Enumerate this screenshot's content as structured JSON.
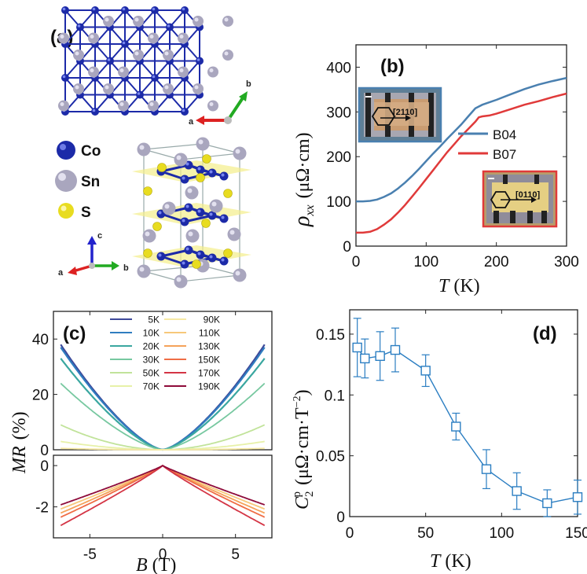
{
  "panels": {
    "a": {
      "label": "(a)",
      "elements": [
        "Co",
        "Sn",
        "S"
      ],
      "axis_top": {
        "a": "a",
        "b": "b"
      },
      "axis_bottom": {
        "a": "a",
        "b": "b",
        "c": "c"
      },
      "colors": {
        "Co": "#1c2aa8",
        "Sn": "#a9a6be",
        "S": "#e8dc20"
      }
    }
  },
  "chart_data": [
    {
      "id": "b",
      "type": "line",
      "panel_label": "(b)",
      "xlabel": "T",
      "xunit": "(K)",
      "ylabel": "ρ",
      "ysub": "xx",
      "yunit": "(μΩ·cm)",
      "xlim": [
        0,
        300
      ],
      "ylim": [
        0,
        450
      ],
      "xticks": [
        "0",
        "100",
        "200",
        "300"
      ],
      "yticks": [
        "0",
        "100",
        "200",
        "300",
        "400"
      ],
      "legend": [
        "B04",
        "B07"
      ],
      "inset1_label": "[2110]",
      "inset2_label": "[0110]",
      "series": [
        {
          "name": "B04",
          "color": "#4a80b0",
          "x": [
            0,
            10,
            20,
            30,
            40,
            50,
            60,
            70,
            80,
            90,
            100,
            110,
            120,
            130,
            140,
            150,
            160,
            170,
            175,
            180,
            200,
            220,
            240,
            260,
            280,
            300
          ],
          "y": [
            100,
            100,
            101,
            104,
            110,
            118,
            129,
            142,
            157,
            173,
            190,
            207,
            223,
            240,
            256,
            272,
            290,
            308,
            312,
            316,
            327,
            339,
            351,
            361,
            369,
            376
          ]
        },
        {
          "name": "B07",
          "color": "#e03a3a",
          "x": [
            0,
            10,
            20,
            30,
            40,
            50,
            60,
            70,
            80,
            90,
            100,
            110,
            120,
            130,
            140,
            150,
            160,
            170,
            175,
            180,
            190,
            200,
            220,
            240,
            260,
            280,
            300
          ],
          "y": [
            30,
            30,
            32,
            38,
            48,
            60,
            75,
            92,
            111,
            130,
            150,
            170,
            190,
            210,
            228,
            246,
            262,
            278,
            288,
            290,
            292,
            296,
            306,
            316,
            324,
            333,
            341
          ]
        }
      ]
    },
    {
      "id": "c",
      "type": "line",
      "panel_label": "(c)",
      "xlabel": "B",
      "xunit": "(T)",
      "ylabel": "MR",
      "yunit": "(%)",
      "xlim": [
        -7.5,
        7.5
      ],
      "ylim_top": [
        0,
        50
      ],
      "ylim_bottom": [
        -3.5,
        0.5
      ],
      "xticks": [
        "-5",
        "0",
        "5"
      ],
      "yticks_top": [
        "0",
        "20",
        "40"
      ],
      "yticks_bottom": [
        "0",
        "-2"
      ],
      "legend_col1": [
        "5K",
        "10K",
        "20K",
        "30K",
        "50K",
        "70K"
      ],
      "legend_col2": [
        "90K",
        "110K",
        "130K",
        "150K",
        "170K",
        "190K"
      ],
      "series": [
        {
          "name": "5K",
          "color": "#3e4a9a",
          "mr_at_7T": 38
        },
        {
          "name": "10K",
          "color": "#2f7dc0",
          "mr_at_7T": 37
        },
        {
          "name": "20K",
          "color": "#3aa7a0",
          "mr_at_7T": 33
        },
        {
          "name": "30K",
          "color": "#77c8a0",
          "mr_at_7T": 24
        },
        {
          "name": "50K",
          "color": "#c1e39a",
          "mr_at_7T": 9
        },
        {
          "name": "70K",
          "color": "#e7f1a8",
          "mr_at_7T": 3
        },
        {
          "name": "90K",
          "color": "#f6e9a4",
          "mr_at_7T": 0.5
        },
        {
          "name": "110K",
          "color": "#f7c87a",
          "mr_at_7T": -2.1
        },
        {
          "name": "130K",
          "color": "#f5a25a",
          "mr_at_7T": -2.3
        },
        {
          "name": "150K",
          "color": "#ef6d45",
          "mr_at_7T": -2.5
        },
        {
          "name": "170K",
          "color": "#d43545",
          "mr_at_7T": -2.9
        },
        {
          "name": "190K",
          "color": "#8e0b3a",
          "mr_at_7T": -1.9
        }
      ]
    },
    {
      "id": "d",
      "type": "scatter",
      "panel_label": "(d)",
      "xlabel": "T",
      "xunit": "(K)",
      "ylabel": "C",
      "ysub": "2",
      "ysup": "p",
      "yunit": "(μΩ·cm·T",
      "yunit_sup": "−2",
      "yunit_close": ")",
      "xlim": [
        0,
        150
      ],
      "ylim": [
        0,
        0.17
      ],
      "xticks": [
        "0",
        "50",
        "100",
        "150"
      ],
      "yticks": [
        "0",
        "0.05",
        "0.1",
        "0.15"
      ],
      "color": "#2b7ec2",
      "series": [
        {
          "name": "C2p",
          "x": [
            5,
            10,
            20,
            30,
            50,
            70,
            90,
            110,
            130,
            150
          ],
          "y": [
            0.139,
            0.13,
            0.132,
            0.137,
            0.12,
            0.074,
            0.039,
            0.021,
            0.011,
            0.016
          ],
          "err": [
            0.024,
            0.016,
            0.02,
            0.018,
            0.013,
            0.011,
            0.016,
            0.015,
            0.011,
            0.014
          ]
        }
      ]
    }
  ]
}
